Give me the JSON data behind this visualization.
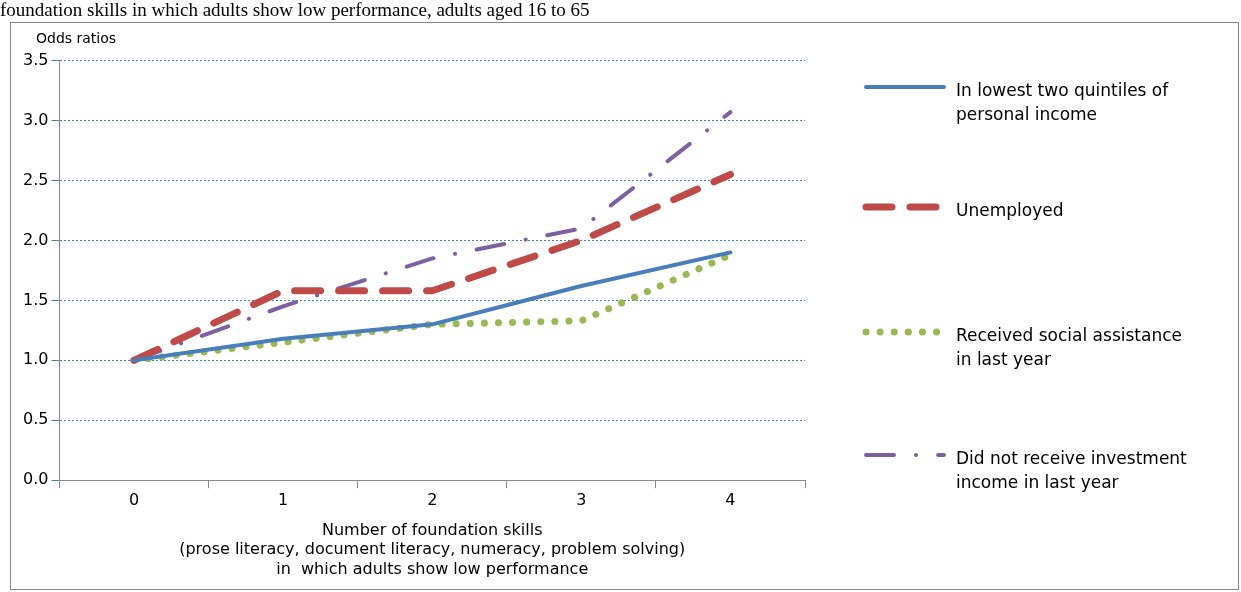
{
  "chart_data": {
    "type": "line",
    "title": "foundation skills in which adults show low performance, adults aged 16 to 65",
    "ylabel": "Odds ratios",
    "xlabel": "Number of foundation skills\n(prose literacy, document literacy, numeracy, problem solving)\nin  which adults show low performance",
    "categories": [
      "0",
      "1",
      "2",
      "3",
      "4"
    ],
    "ylim": [
      0,
      3.5
    ],
    "yticks": [
      {
        "value": 0,
        "label": "0.0"
      },
      {
        "value": 0.5,
        "label": "0.5"
      },
      {
        "value": 1,
        "label": "1.0"
      },
      {
        "value": 1.5,
        "label": "1.5"
      },
      {
        "value": 2,
        "label": "2.0"
      },
      {
        "value": 2.5,
        "label": "2.5"
      },
      {
        "value": 3,
        "label": "3.0"
      },
      {
        "value": 3.5,
        "label": "3.5"
      }
    ],
    "grid": "y",
    "legend": "right",
    "marker": "none",
    "series": [
      {
        "name": "In lowest two quintiles of personal income",
        "color": "#4a7ebb",
        "line_style": "solid",
        "values": [
          1.0,
          1.18,
          1.3,
          1.62,
          1.9
        ]
      },
      {
        "name": "Unemployed",
        "color": "#be4b48",
        "line_style": "dashed",
        "values": [
          1.0,
          1.58,
          1.58,
          2.0,
          2.55
        ]
      },
      {
        "name": "Received social assistance in last year",
        "color": "#98b954",
        "line_style": "dotted",
        "values": [
          1.0,
          1.15,
          1.3,
          1.33,
          1.88
        ]
      },
      {
        "name": "Did not receive investment income in last year",
        "color": "#7d60a0",
        "line_style": "dashdot",
        "values": [
          1.0,
          1.45,
          1.85,
          2.1,
          3.07
        ]
      }
    ]
  }
}
